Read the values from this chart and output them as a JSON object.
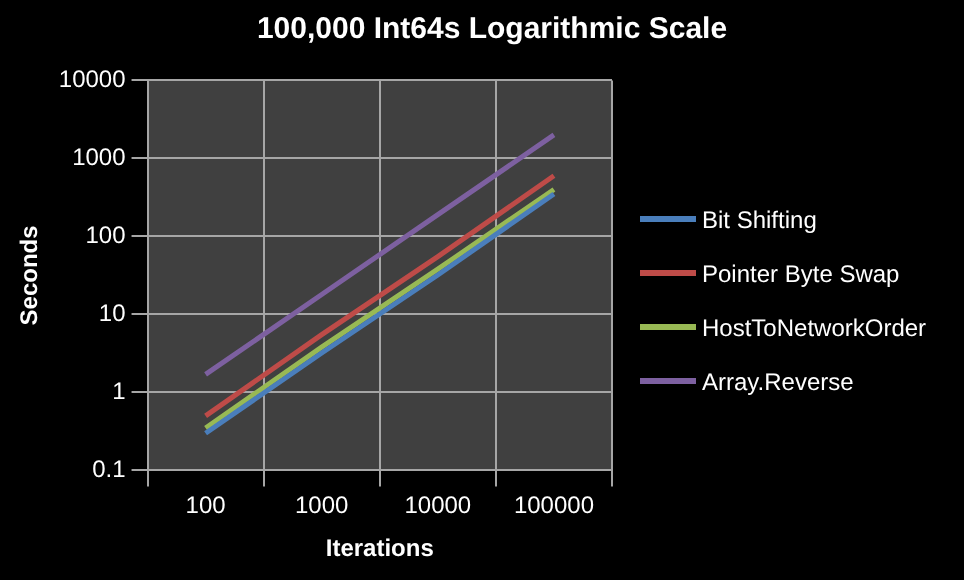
{
  "chart_data": {
    "type": "line",
    "title": "100,000 Int64s Logarithmic Scale",
    "xlabel": "Iterations",
    "ylabel": "Seconds",
    "categories": [
      "100",
      "1000",
      "10000",
      "100000"
    ],
    "series": [
      {
        "name": "Bit Shifting",
        "color": "#4a7ebb",
        "values": [
          0.3,
          3.2,
          32,
          350
        ]
      },
      {
        "name": "Pointer Byte Swap",
        "color": "#be4b48",
        "values": [
          0.5,
          5.5,
          55,
          600
        ]
      },
      {
        "name": "HostToNetworkOrder",
        "color": "#98b954",
        "values": [
          0.35,
          3.8,
          38,
          400
        ]
      },
      {
        "name": "Array.Reverse",
        "color": "#7d60a0",
        "values": [
          1.7,
          18,
          190,
          2000
        ]
      }
    ],
    "log": "y",
    "ylim": [
      0.1,
      10000
    ],
    "yticks": [
      0.1,
      1,
      10,
      100,
      1000,
      10000
    ],
    "grid": true,
    "legend": "right",
    "marker": "none",
    "line_style": "solid"
  }
}
